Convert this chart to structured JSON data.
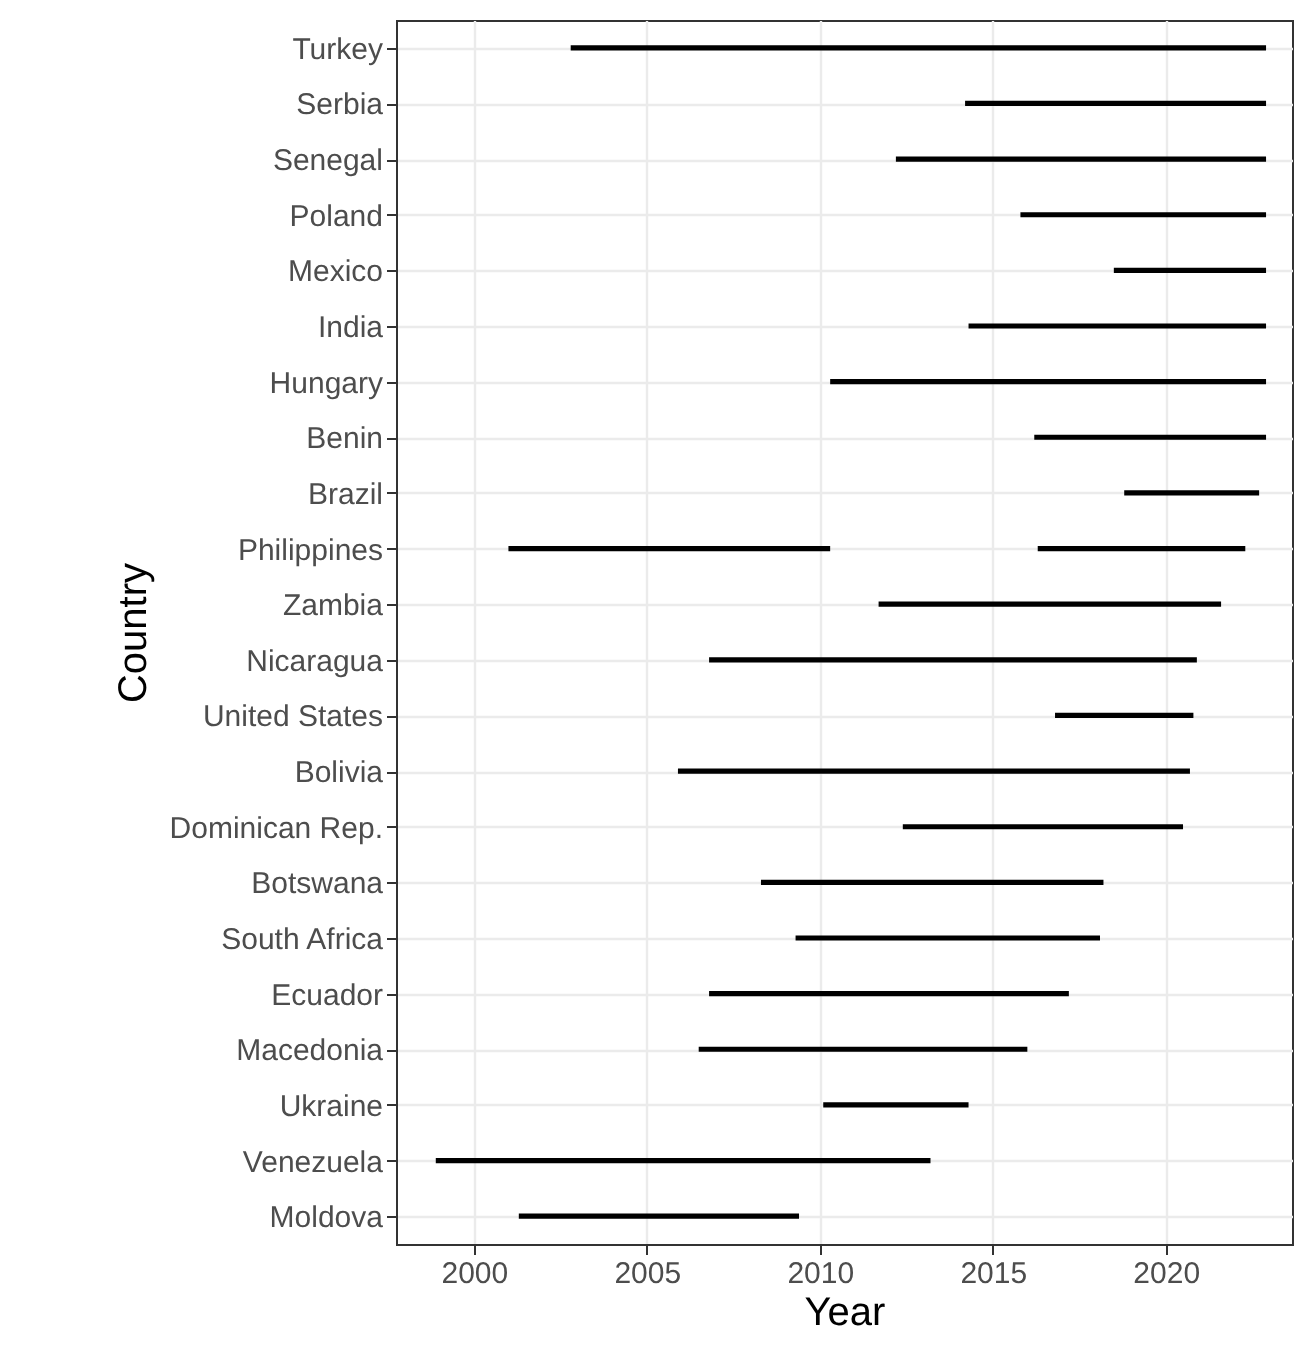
{
  "chart_data": {
    "type": "bar",
    "orientation": "horizontal",
    "xlabel": "Year",
    "ylabel": "Country",
    "categories": [
      "Turkey",
      "Serbia",
      "Senegal",
      "Poland",
      "Mexico",
      "India",
      "Hungary",
      "Benin",
      "Brazil",
      "Philippines",
      "Zambia",
      "Nicaragua",
      "United States",
      "Bolivia",
      "Dominican Rep.",
      "Botswana",
      "South Africa",
      "Ecuador",
      "Macedonia",
      "Ukraine",
      "Venezuela",
      "Moldova"
    ],
    "series": [
      {
        "color": "#000000",
        "base": [
          2002.8,
          2014.2,
          2012.2,
          2015.8,
          2018.5,
          2014.3,
          2010.3,
          2016.2,
          2018.8,
          2001.0,
          2011.7,
          2006.8,
          2016.8,
          2005.9,
          2012.4,
          2008.3,
          2009.3,
          2006.8,
          2006.5,
          2010.1,
          1998.9,
          2001.3
        ],
        "values": [
          20.1,
          8.7,
          10.7,
          7.1,
          4.4,
          8.6,
          12.6,
          6.7,
          3.9,
          9.3,
          9.9,
          14.1,
          4.0,
          14.8,
          8.1,
          9.9,
          8.8,
          10.4,
          9.5,
          4.2,
          14.3,
          8.1
        ]
      },
      {
        "color": "#000000",
        "base": [
          null,
          null,
          null,
          null,
          null,
          null,
          null,
          null,
          null,
          2016.3,
          null,
          null,
          null,
          null,
          null,
          null,
          null,
          null,
          null,
          null,
          null,
          null
        ],
        "values": [
          null,
          null,
          null,
          null,
          null,
          null,
          null,
          null,
          null,
          6.0,
          null,
          null,
          null,
          null,
          null,
          null,
          null,
          null,
          null,
          null,
          null,
          null
        ]
      }
    ],
    "xlim": [
      1997.75,
      2023.65
    ],
    "xticks": [
      2000,
      2005,
      2010,
      2015,
      2020
    ],
    "grid": true
  }
}
